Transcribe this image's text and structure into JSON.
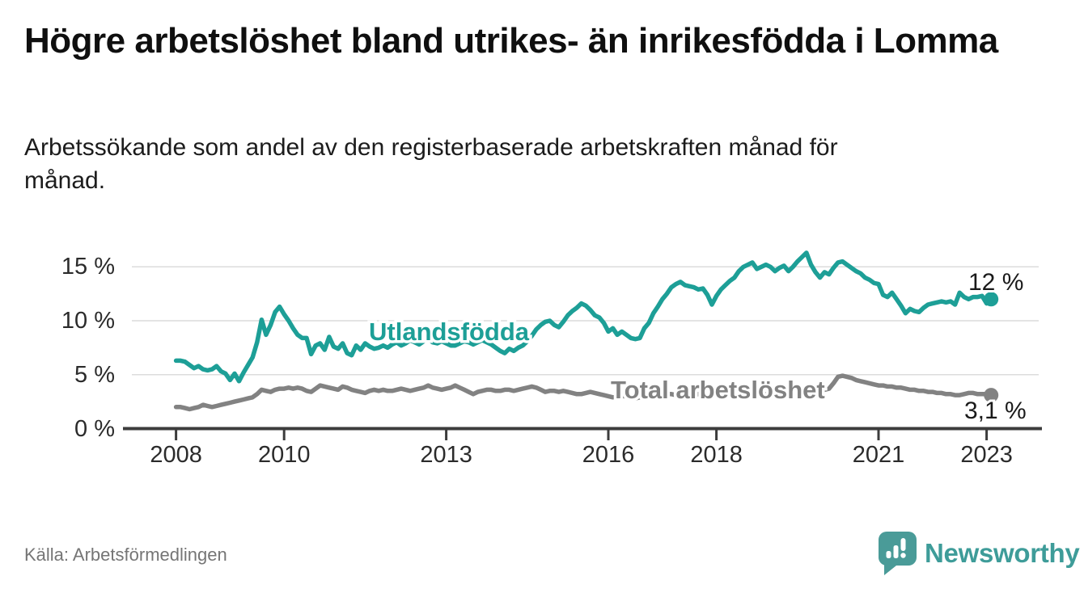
{
  "title": "Högre arbetslöshet bland utrikes- än inrikesfödda i Lomma",
  "subtitle": "Arbetssökande som andel av den registerbaserade arbetskraften månad för månad.",
  "source": "Källa: Arbetsförmedlingen",
  "logo": {
    "wordmark": "Newsworthy",
    "icon": "speech-bubble-bar-chart-icon",
    "color": "#3e9c99",
    "icon_color": "#4a9b98"
  },
  "colors": {
    "teal_series": "#1d9f97",
    "gray_series": "#828282",
    "axis": "#3c3c3c",
    "grid": "#dcdcdc",
    "text": "#0f0f0f",
    "muted": "#757575"
  },
  "chart_data": {
    "type": "line",
    "title": "Högre arbetslöshet bland utrikes- än inrikesfödda i Lomma",
    "subtitle": "Arbetssökande som andel av den registerbaserade arbetskraften månad för månad.",
    "x_unit": "month",
    "x_start": "2008-01",
    "x_end": "2023-02",
    "xlim": [
      2008,
      2023.6
    ],
    "ylim": [
      0,
      16.5
    ],
    "grid": "horizontal",
    "legend_position": "inline-labels",
    "y_ticks": [
      {
        "value": 0,
        "label": "0 %"
      },
      {
        "value": 5,
        "label": "5 %"
      },
      {
        "value": 10,
        "label": "10 %"
      },
      {
        "value": 15,
        "label": "15 %"
      }
    ],
    "x_ticks": [
      {
        "value": 2008,
        "label": "2008"
      },
      {
        "value": 2010,
        "label": "2010"
      },
      {
        "value": 2013,
        "label": "2013"
      },
      {
        "value": 2016,
        "label": "2016"
      },
      {
        "value": 2018,
        "label": "2018"
      },
      {
        "value": 2021,
        "label": "2021"
      },
      {
        "value": 2023,
        "label": "2023"
      }
    ],
    "series": [
      {
        "name": "Utlandsfödda",
        "color": "#1d9f97",
        "end_label": "12 %",
        "end_value": 12.0,
        "values": [
          6.3,
          6.3,
          6.2,
          5.9,
          5.6,
          5.8,
          5.5,
          5.4,
          5.5,
          5.8,
          5.3,
          5.1,
          4.5,
          5.1,
          4.4,
          5.2,
          5.9,
          6.6,
          8.0,
          10.1,
          8.7,
          9.6,
          10.8,
          11.3,
          10.6,
          10.0,
          9.3,
          8.7,
          8.4,
          8.4,
          6.9,
          7.7,
          7.9,
          7.3,
          8.5,
          7.6,
          7.4,
          7.9,
          7.0,
          6.8,
          7.7,
          7.3,
          7.9,
          7.6,
          7.4,
          7.5,
          7.7,
          7.5,
          7.8,
          8.0,
          7.7,
          7.9,
          8.2,
          8.0,
          7.8,
          8.1,
          8.3,
          8.0,
          7.9,
          8.1,
          7.9,
          7.7,
          7.7,
          7.9,
          8.1,
          8.0,
          7.8,
          8.0,
          8.2,
          8.0,
          7.8,
          7.5,
          7.2,
          7.0,
          7.4,
          7.2,
          7.5,
          7.7,
          8.1,
          8.6,
          9.2,
          9.6,
          9.9,
          10.0,
          9.6,
          9.4,
          9.9,
          10.5,
          10.9,
          11.2,
          11.6,
          11.4,
          11.0,
          10.5,
          10.3,
          9.8,
          9.0,
          9.3,
          8.7,
          9.0,
          8.7,
          8.4,
          8.3,
          8.4,
          9.3,
          9.8,
          10.7,
          11.3,
          12.0,
          12.5,
          13.1,
          13.4,
          13.6,
          13.3,
          13.2,
          13.1,
          12.9,
          13.0,
          12.4,
          11.5,
          12.3,
          12.9,
          13.3,
          13.7,
          14.0,
          14.6,
          15.0,
          15.2,
          15.4,
          14.8,
          15.0,
          15.2,
          15.0,
          14.6,
          14.9,
          15.1,
          14.6,
          15.0,
          15.5,
          15.9,
          16.3,
          15.2,
          14.5,
          14.0,
          14.5,
          14.3,
          14.9,
          15.4,
          15.5,
          15.2,
          14.9,
          14.6,
          14.4,
          14.0,
          13.8,
          13.5,
          13.4,
          12.4,
          12.2,
          12.6,
          12.0,
          11.4,
          10.7,
          11.1,
          10.9,
          10.8,
          11.2,
          11.5,
          11.6,
          11.7,
          11.8,
          11.7,
          11.8,
          11.5,
          12.6,
          12.2,
          12.0,
          12.2,
          12.2,
          12.3,
          11.6,
          12.0
        ]
      },
      {
        "name": "Total arbetslöshet",
        "color": "#828282",
        "end_label": "3,1 %",
        "end_value": 3.1,
        "values": [
          2.0,
          2.0,
          1.9,
          1.8,
          1.9,
          2.0,
          2.2,
          2.1,
          2.0,
          2.1,
          2.2,
          2.3,
          2.4,
          2.5,
          2.6,
          2.7,
          2.8,
          2.9,
          3.2,
          3.6,
          3.5,
          3.4,
          3.6,
          3.7,
          3.7,
          3.8,
          3.7,
          3.8,
          3.7,
          3.5,
          3.4,
          3.7,
          4.0,
          3.9,
          3.8,
          3.7,
          3.6,
          3.9,
          3.8,
          3.6,
          3.5,
          3.4,
          3.3,
          3.5,
          3.6,
          3.5,
          3.6,
          3.5,
          3.5,
          3.6,
          3.7,
          3.6,
          3.5,
          3.6,
          3.7,
          3.8,
          4.0,
          3.8,
          3.7,
          3.6,
          3.7,
          3.8,
          4.0,
          3.8,
          3.6,
          3.4,
          3.2,
          3.4,
          3.5,
          3.6,
          3.6,
          3.5,
          3.5,
          3.6,
          3.6,
          3.5,
          3.6,
          3.7,
          3.8,
          3.9,
          3.8,
          3.6,
          3.4,
          3.5,
          3.5,
          3.4,
          3.5,
          3.4,
          3.3,
          3.2,
          3.2,
          3.3,
          3.4,
          3.3,
          3.2,
          3.1,
          3.0,
          2.9,
          2.9,
          3.0,
          3.0,
          2.9,
          2.8,
          2.9,
          3.0,
          3.0,
          3.1,
          3.1,
          3.1,
          3.2,
          3.2,
          3.1,
          3.1,
          3.0,
          3.0,
          3.1,
          3.2,
          3.2,
          3.2,
          3.1,
          3.1,
          3.2,
          3.2,
          3.1,
          3.0,
          3.0,
          3.1,
          3.2,
          3.2,
          3.1,
          3.1,
          3.2,
          3.2,
          3.3,
          3.3,
          3.2,
          3.2,
          3.3,
          3.4,
          3.5,
          3.5,
          3.4,
          3.4,
          3.5,
          3.6,
          3.7,
          4.2,
          4.8,
          4.9,
          4.8,
          4.7,
          4.5,
          4.4,
          4.3,
          4.2,
          4.1,
          4.0,
          4.0,
          3.9,
          3.9,
          3.8,
          3.8,
          3.7,
          3.6,
          3.6,
          3.5,
          3.5,
          3.4,
          3.4,
          3.3,
          3.3,
          3.2,
          3.2,
          3.1,
          3.1,
          3.2,
          3.3,
          3.3,
          3.2,
          3.2,
          3.2,
          3.1
        ]
      }
    ]
  }
}
